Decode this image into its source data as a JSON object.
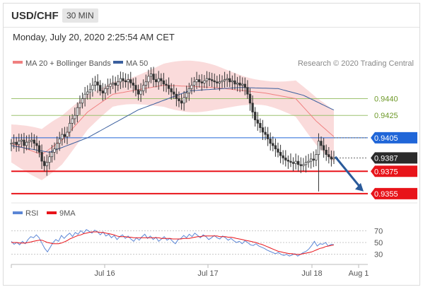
{
  "header": {
    "symbol": "USD/CHF",
    "interval": "30 MIN"
  },
  "timestamp": "Monday, July 20, 2020 2:25:54 AM CET",
  "credit": "Research © 2020 Trading Central",
  "colors": {
    "ma20": "#f08080",
    "ma50": "#3a5f9e",
    "band": "#f9d5d5",
    "support": "#e8141a",
    "resistance_green": "#9ec270",
    "blue_level": "#2066d8",
    "candle": "#333333",
    "rsi": "#5b86d6",
    "nine_ma": "#e8141a",
    "arrow": "#2a5a9a"
  },
  "chart_data": [
    {
      "type": "candlestick",
      "title": "",
      "legend": [
        {
          "name": "MA 20 + Bollinger Bands",
          "color": "#f08080"
        },
        {
          "name": "MA 50",
          "color": "#3a5f9e"
        }
      ],
      "x_ticks": [
        "Jul 16",
        "Jul 17",
        "Jul 18",
        "Aug 1"
      ],
      "y_range": [
        0.9348,
        0.9465
      ],
      "levels": [
        {
          "value": 0.944,
          "label": "0.9440",
          "kind": "resistance"
        },
        {
          "value": 0.9425,
          "label": "0.9425",
          "kind": "resistance"
        },
        {
          "value": 0.9405,
          "label": "0.9405",
          "kind": "pivot"
        },
        {
          "value": 0.9387,
          "label": "0.9387",
          "kind": "last"
        },
        {
          "value": 0.9375,
          "label": "0.9375",
          "kind": "support"
        },
        {
          "value": 0.9355,
          "label": "0.9355",
          "kind": "support"
        }
      ],
      "series": [
        {
          "name": "MA 20",
          "key_points": [
            [
              0,
              0.94
            ],
            [
              12,
              0.939
            ],
            [
              20,
              0.9403
            ],
            [
              30,
              0.9428
            ],
            [
              40,
              0.9444
            ],
            [
              60,
              0.9452
            ],
            [
              80,
              0.945
            ],
            [
              100,
              0.9445
            ],
            [
              112,
              0.944
            ],
            [
              120,
              0.942
            ],
            [
              130,
              0.94
            ],
            [
              140,
              0.9385
            ],
            [
              152,
              0.9388
            ]
          ]
        },
        {
          "name": "MA 50",
          "key_points": [
            [
              0,
              0.9398
            ],
            [
              15,
              0.9392
            ],
            [
              30,
              0.9405
            ],
            [
              50,
              0.943
            ],
            [
              70,
              0.9447
            ],
            [
              90,
              0.945
            ],
            [
              105,
              0.9449
            ],
            [
              115,
              0.9443
            ],
            [
              125,
              0.9432
            ],
            [
              140,
              0.9416
            ],
            [
              150,
              0.9407
            ]
          ]
        }
      ],
      "closes": [
        0.94,
        0.9401,
        0.9399,
        0.9402,
        0.9403,
        0.9398,
        0.9401,
        0.9402,
        0.9403,
        0.94,
        0.9398,
        0.9392,
        0.9384,
        0.938,
        0.9383,
        0.9388,
        0.9392,
        0.9395,
        0.94,
        0.9404,
        0.9408,
        0.9406,
        0.941,
        0.9418,
        0.9422,
        0.9425,
        0.9432,
        0.9436,
        0.944,
        0.9444,
        0.9446,
        0.9448,
        0.9452,
        0.9455,
        0.9452,
        0.9447,
        0.9445,
        0.9449,
        0.9451,
        0.9453,
        0.9454,
        0.9452,
        0.9455,
        0.9458,
        0.9456,
        0.9455,
        0.9457,
        0.9454,
        0.9452,
        0.9448,
        0.9444,
        0.9447,
        0.9452,
        0.9455,
        0.946,
        0.9462,
        0.9457,
        0.9455,
        0.9458,
        0.9456,
        0.9453,
        0.9452,
        0.9449,
        0.9446,
        0.9444,
        0.944,
        0.9438,
        0.9436,
        0.9441,
        0.9445,
        0.9449,
        0.9452,
        0.9455,
        0.9457,
        0.9455,
        0.9454,
        0.9456,
        0.9458,
        0.9457,
        0.9456,
        0.9455,
        0.9454,
        0.9455,
        0.9456,
        0.9457,
        0.9458,
        0.9455,
        0.9456,
        0.9453,
        0.9454,
        0.9452,
        0.9453,
        0.945,
        0.9444,
        0.9436,
        0.9428,
        0.9421,
        0.9418,
        0.9414,
        0.941,
        0.9408,
        0.9404,
        0.94,
        0.9398,
        0.9395,
        0.9392,
        0.9389,
        0.9387,
        0.9385,
        0.9384,
        0.9383,
        0.9382,
        0.9384,
        0.9381,
        0.938,
        0.9381,
        0.9383,
        0.9384,
        0.9386,
        0.9385,
        0.939,
        0.9402,
        0.9398,
        0.9394,
        0.939,
        0.9388,
        0.9386,
        0.9387
      ]
    },
    {
      "type": "line",
      "title": "",
      "legend": [
        {
          "name": "RSI",
          "color": "#5b86d6"
        },
        {
          "name": "9MA",
          "color": "#e8141a"
        }
      ],
      "y_ticks": [
        70,
        50,
        30
      ],
      "y_range": [
        20,
        80
      ],
      "series": [
        {
          "name": "RSI",
          "values": [
            52,
            47,
            50,
            46,
            52,
            48,
            55,
            60,
            58,
            63,
            58,
            49,
            40,
            34,
            42,
            50,
            55,
            52,
            62,
            57,
            62,
            66,
            60,
            67,
            64,
            70,
            66,
            72,
            69,
            66,
            71,
            68,
            63,
            68,
            61,
            64,
            58,
            62,
            55,
            60,
            63,
            57,
            61,
            56,
            52,
            58,
            54,
            60,
            64,
            57,
            61,
            55,
            59,
            52,
            56,
            60,
            54,
            57,
            52,
            48,
            55,
            57,
            62,
            58,
            64,
            60,
            66,
            62,
            58,
            63,
            60,
            55,
            58,
            62,
            58,
            56,
            61,
            58,
            54,
            57,
            53,
            50,
            52,
            48,
            53,
            50,
            46,
            45,
            48,
            44,
            42,
            40,
            37,
            35,
            33,
            31,
            33,
            30,
            28,
            30,
            27,
            29,
            31,
            27,
            30,
            33,
            35,
            39,
            45,
            52,
            44,
            48,
            47,
            50,
            44,
            47,
            46
          ]
        },
        {
          "name": "9MA",
          "values": [
            50,
            50,
            50,
            49,
            49,
            49,
            50,
            51,
            52,
            53,
            54,
            54,
            52,
            50,
            49,
            48,
            48,
            48,
            49,
            51,
            53,
            56,
            58,
            60,
            62,
            63,
            65,
            66,
            67,
            68,
            68,
            68,
            67,
            67,
            66,
            65,
            64,
            63,
            61,
            60,
            60,
            60,
            59,
            59,
            58,
            58,
            58,
            58,
            58,
            58,
            58,
            58,
            58,
            58,
            57,
            57,
            57,
            57,
            56,
            56,
            56,
            56,
            57,
            57,
            57,
            58,
            59,
            60,
            60,
            61,
            61,
            61,
            61,
            61,
            61,
            60,
            60,
            60,
            59,
            59,
            58,
            57,
            56,
            55,
            54,
            53,
            52,
            51,
            50,
            48,
            47,
            45,
            43,
            41,
            39,
            37,
            35,
            34,
            33,
            32,
            31,
            31,
            30,
            30,
            30,
            31,
            32,
            33,
            34,
            36,
            38,
            40,
            41,
            43,
            44,
            45,
            46
          ]
        }
      ]
    }
  ],
  "rsi_panel": {
    "ticks": [
      "70",
      "50",
      "30"
    ]
  }
}
